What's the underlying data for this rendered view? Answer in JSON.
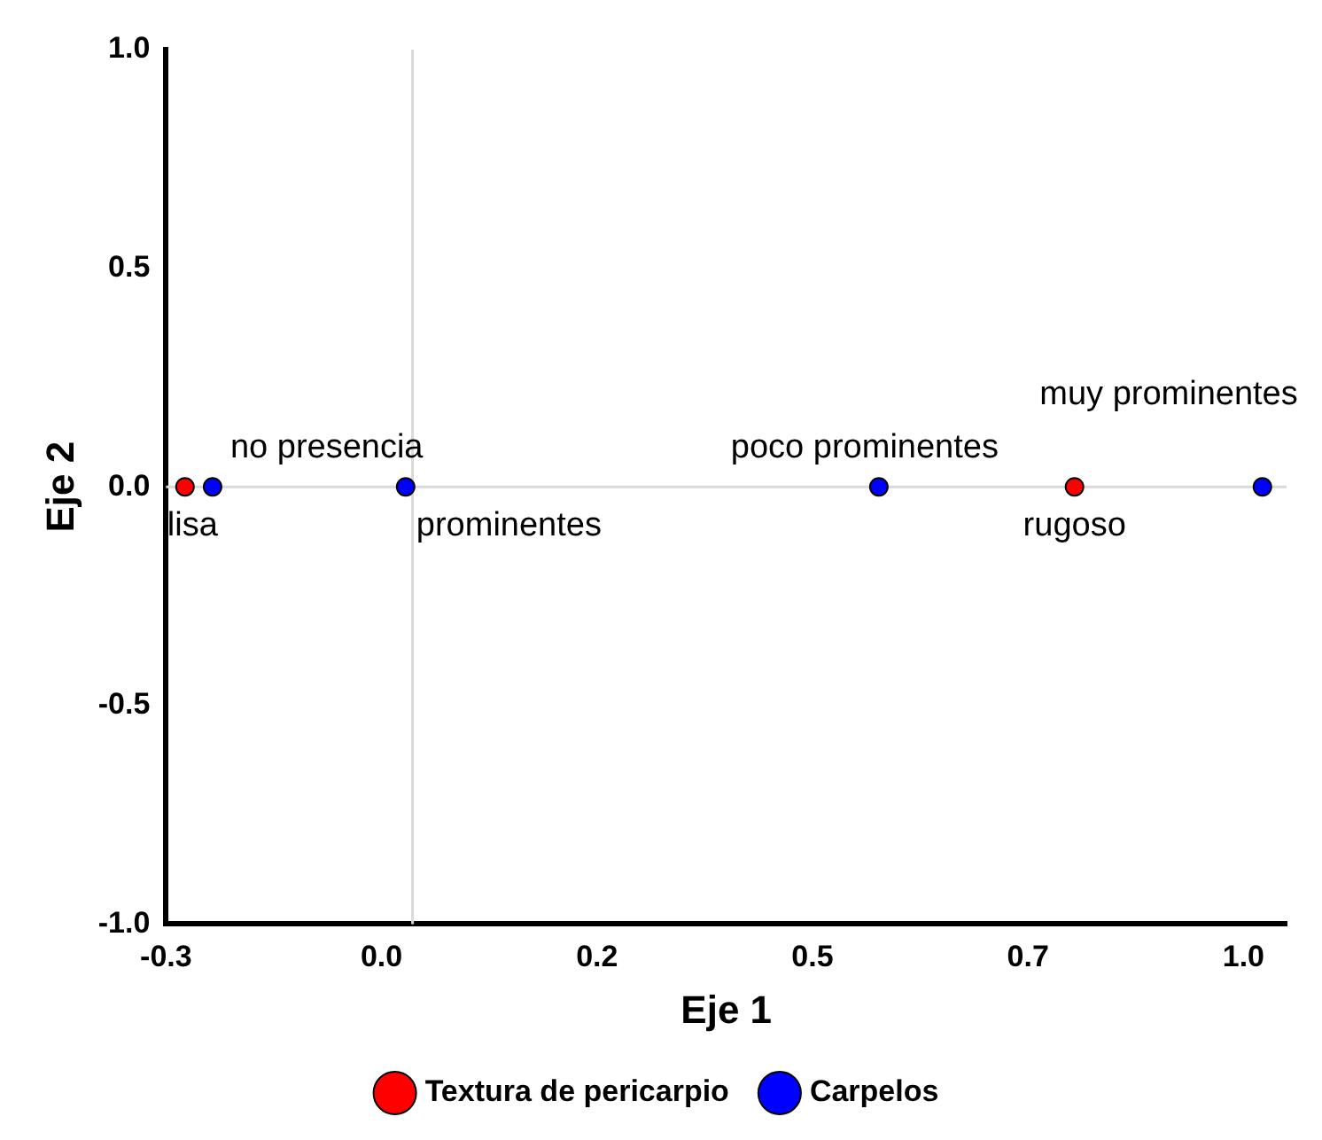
{
  "chart_data": {
    "type": "scatter",
    "xlabel": "Eje 1",
    "ylabel": "Eje 2",
    "series": [
      {
        "name": "Textura de pericarpio",
        "color": "#ff0000",
        "x": [
          -0.228,
          0.804
        ],
        "values": [
          0,
          0
        ]
      },
      {
        "name": "Carpelos",
        "color": "#0000ff",
        "x": [
          -0.196,
          0.028,
          0.577,
          1.022
        ],
        "values": [
          0,
          0,
          0,
          0
        ]
      }
    ],
    "annotations": [
      {
        "text": "lisa",
        "x": -0.228,
        "y": 0
      },
      {
        "text": "rugoso",
        "x": 0.804,
        "y": 0
      },
      {
        "text": "no presencia",
        "x": -0.196,
        "y": 0
      },
      {
        "text": "prominentes",
        "x": 0.028,
        "y": 0
      },
      {
        "text": "poco prominentes",
        "x": 0.577,
        "y": 0
      },
      {
        "text": "muy prominentes",
        "x": 1.022,
        "y": 0
      }
    ],
    "ref_lines": [
      {
        "axis": "x",
        "value": 0.036,
        "color": "#d9d9d9"
      },
      {
        "axis": "y",
        "value": 0,
        "color": "#d9d9d9"
      }
    ],
    "xlim": [
      -0.25,
      1.05
    ],
    "ylim": [
      -1,
      1
    ],
    "xticks": [
      {
        "value": -0.25,
        "label": "-0.3"
      },
      {
        "value": 0,
        "label": "0.0"
      },
      {
        "value": 0.25,
        "label": "0.2"
      },
      {
        "value": 0.5,
        "label": "0.5"
      },
      {
        "value": 0.75,
        "label": "0.7"
      },
      {
        "value": 1.0,
        "label": "1.0"
      }
    ],
    "yticks": [
      {
        "value": -1,
        "label": "-1.0"
      },
      {
        "value": -0.5,
        "label": "-0.5"
      },
      {
        "value": 0,
        "label": "0.0"
      },
      {
        "value": 0.5,
        "label": "0.5"
      },
      {
        "value": 1,
        "label": "1.0"
      }
    ],
    "grid": false,
    "legend": "bottom",
    "marker": "circle"
  }
}
